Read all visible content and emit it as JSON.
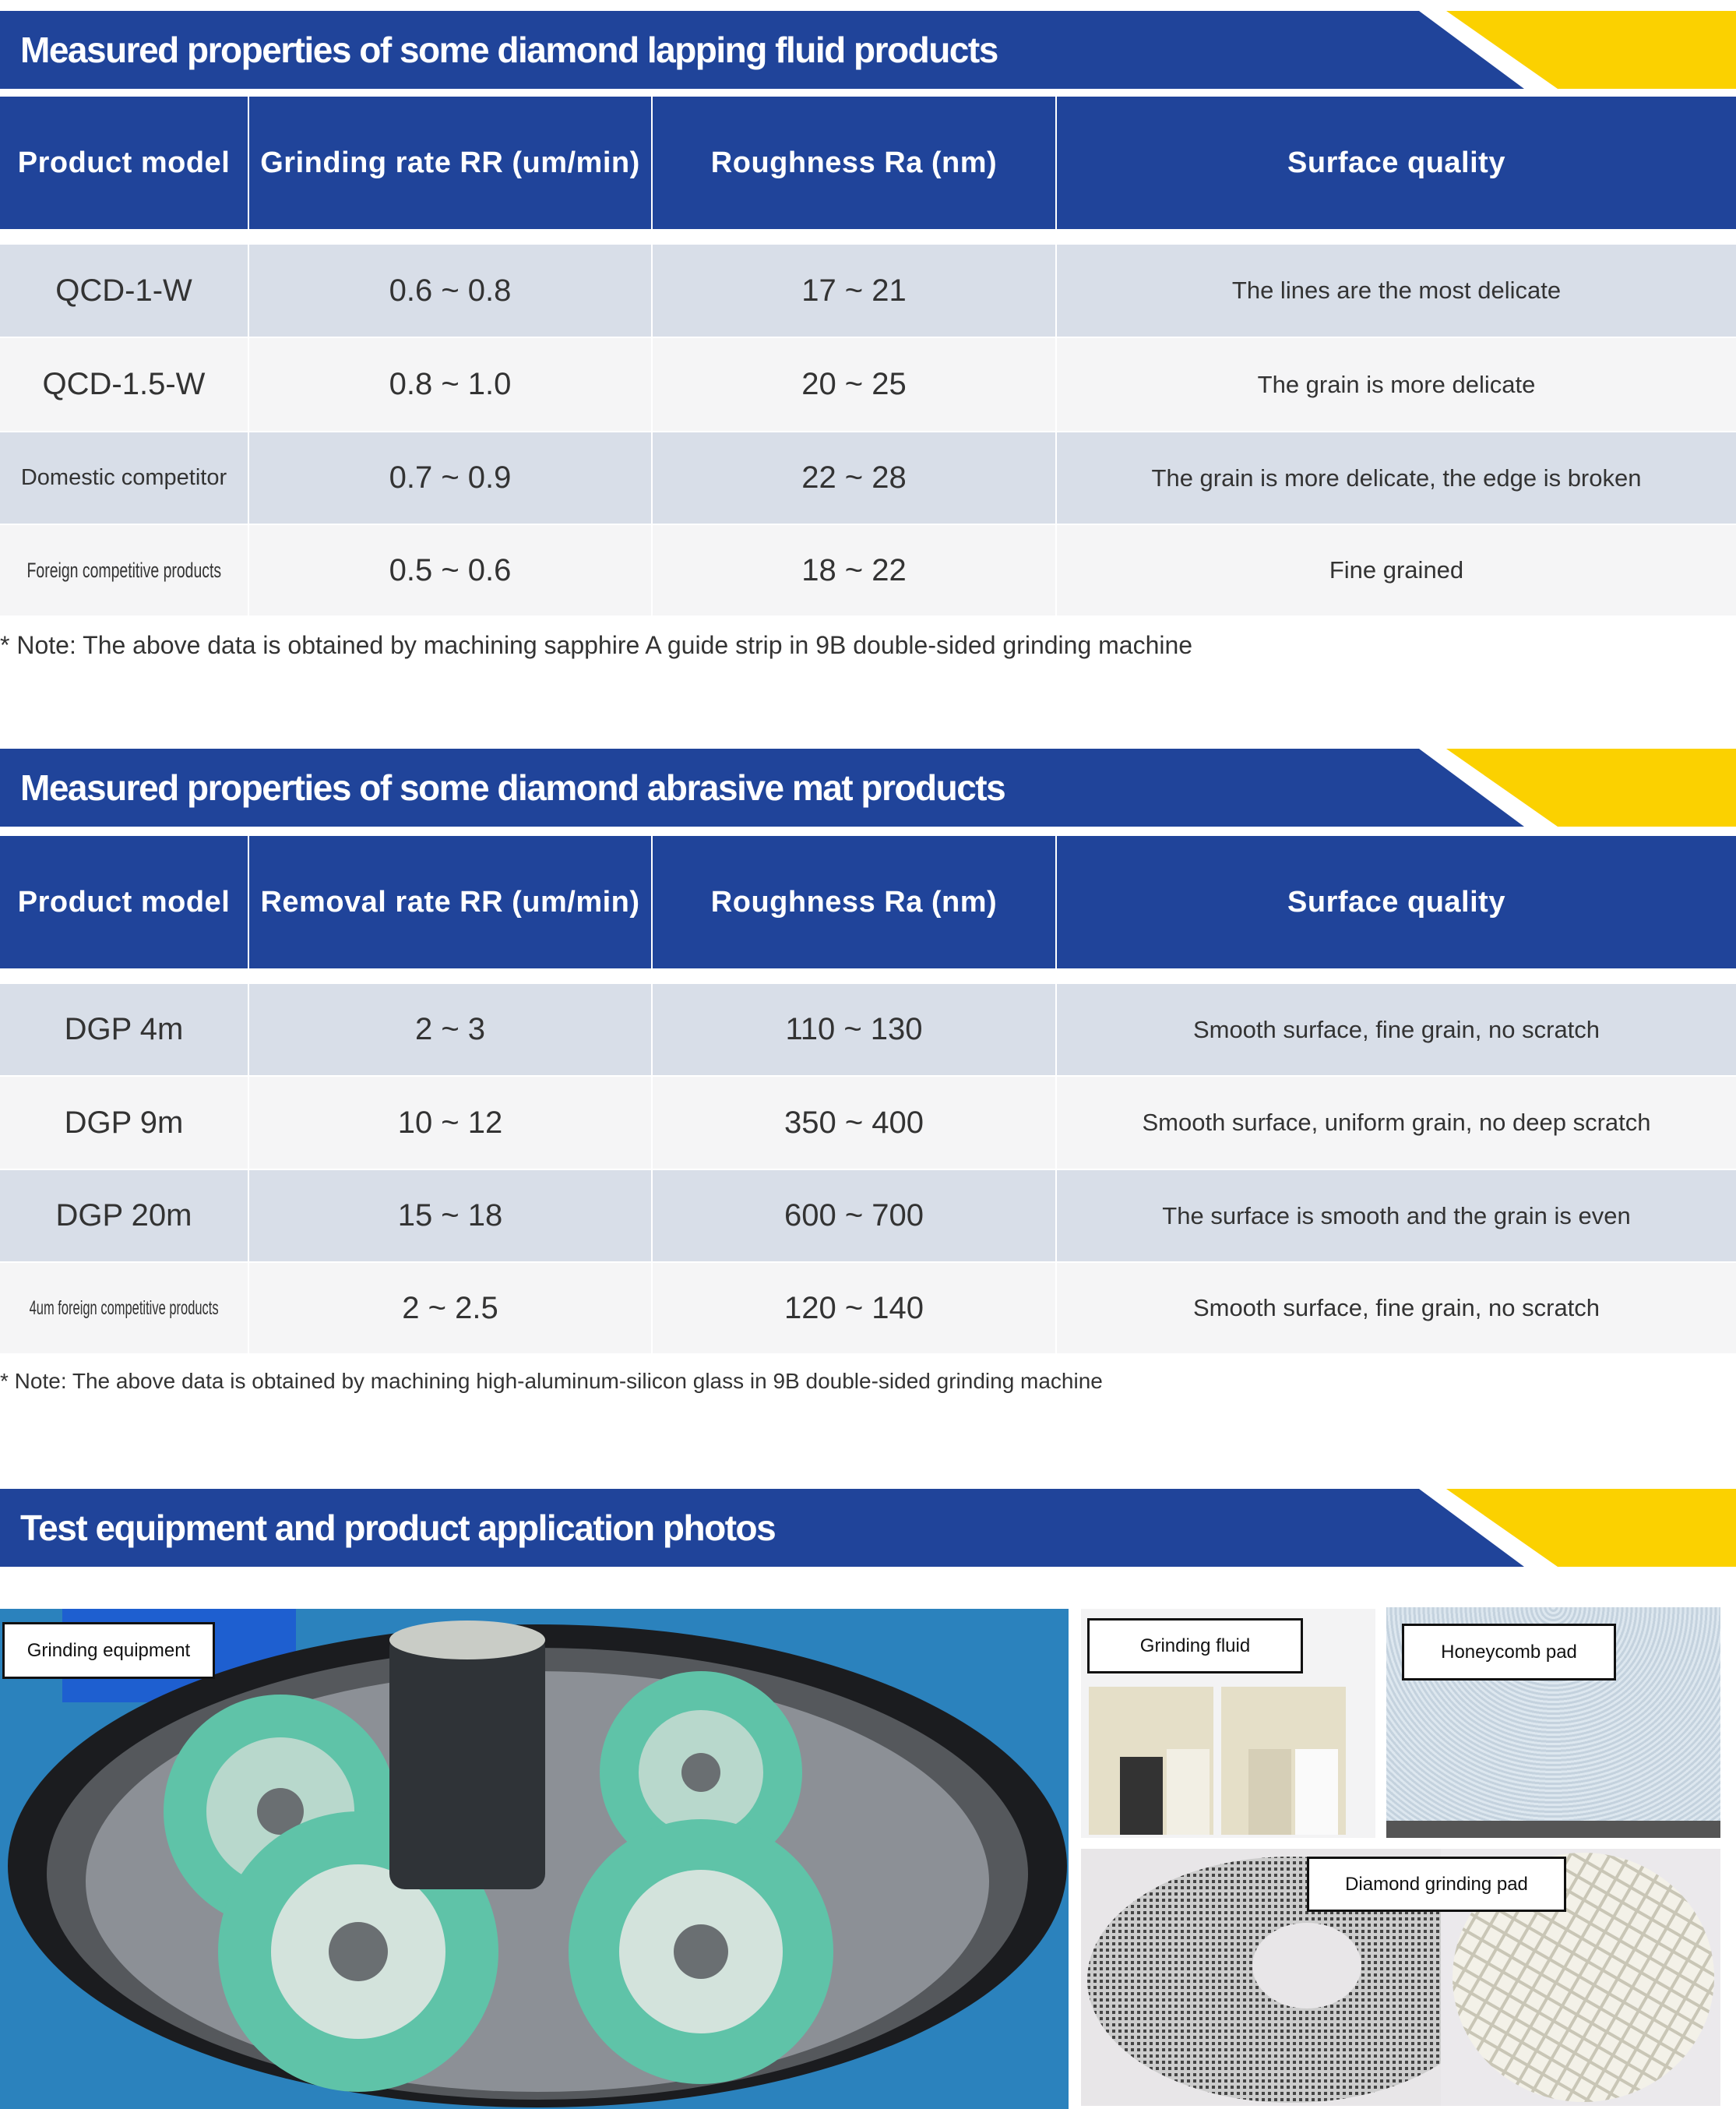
{
  "colors": {
    "banner_blue": "#20449a",
    "banner_yellow": "#fbd100",
    "row_shade": "#d8dee8",
    "row_light": "#f5f5f6"
  },
  "section1": {
    "title": "Measured properties of some diamond lapping fluid products",
    "headers": [
      "Product model",
      "Grinding rate RR (um/min)",
      "Roughness Ra (nm)",
      "Surface quality"
    ],
    "rows": [
      [
        "QCD-1-W",
        "0.6 ~ 0.8",
        "17 ~ 21",
        "The lines are the most delicate"
      ],
      [
        "QCD-1.5-W",
        "0.8 ~ 1.0",
        "20 ~ 25",
        "The grain is more delicate"
      ],
      [
        "Domestic competitor",
        "0.7 ~ 0.9",
        "22 ~ 28",
        "The grain is more delicate, the edge is broken"
      ],
      [
        "Foreign competitive products",
        "0.5 ~ 0.6",
        "18 ~ 22",
        "Fine grained"
      ]
    ],
    "note": "* Note: The above data is obtained by machining sapphire A guide strip in 9B double-sided grinding machine"
  },
  "section2": {
    "title": "Measured properties of some diamond abrasive mat products",
    "headers": [
      "Product model",
      "Removal rate RR (um/min)",
      "Roughness Ra (nm)",
      "Surface quality"
    ],
    "rows": [
      [
        "DGP 4m",
        "2 ~ 3",
        "110 ~ 130",
        "Smooth surface, fine grain, no scratch"
      ],
      [
        "DGP 9m",
        "10 ~ 12",
        "350 ~ 400",
        "Smooth surface, uniform grain, no deep scratch"
      ],
      [
        "DGP 20m",
        "15 ~ 18",
        "600 ~ 700",
        "The surface is smooth and the grain is even"
      ],
      [
        "4um foreign competitive products",
        "2 ~ 2.5",
        "120 ~ 140",
        "Smooth surface, fine grain, no scratch"
      ]
    ],
    "note": "* Note: The above data is obtained by machining high-aluminum-silicon glass in 9B double-sided grinding machine"
  },
  "section3": {
    "title": "Test equipment and product application photos",
    "photos": {
      "equipment": "Grinding equipment",
      "fluid": "Grinding fluid",
      "honeycomb": "Honeycomb pad",
      "diamond": "Diamond grinding pad"
    }
  }
}
